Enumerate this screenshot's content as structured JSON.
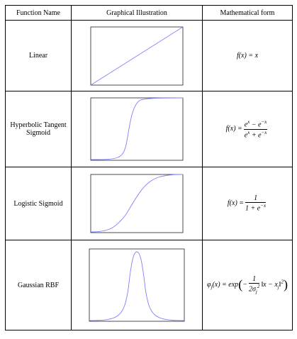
{
  "table": {
    "header": [
      "Function Name",
      "Graphical Illustration",
      "Mathematical form"
    ],
    "rows": [
      {
        "name": "Linear",
        "formula": {
          "lhs": "f(x) = x"
        }
      },
      {
        "name": "Hyperbolic Tangent Sigmoid",
        "formula": {
          "lhs": "f(x) =",
          "num": "e",
          "num_sup": "x",
          "num_mid": " − e",
          "num_sup2": "−x",
          "den": "e",
          "den_sup": "x",
          "den_mid": " + e",
          "den_sup2": "−x"
        }
      },
      {
        "name": "Logistic Sigmoid",
        "formula": {
          "lhs": "f(x) =",
          "num": "1",
          "den": "1 + e",
          "den_sup": "−x"
        }
      },
      {
        "name": "Gaussian RBF",
        "formula": {
          "lhs": "φ",
          "lhs_sub": "j",
          "lhs2": "(x) = exp",
          "open": "(",
          "minus": "−",
          "num": "1",
          "den": "2σ",
          "den_sub": "j",
          "den_sup": "2",
          "norm": "‖x − x",
          "norm_sub": "j",
          "norm_end": "‖",
          "norm_sup": "2",
          "close": ")"
        }
      }
    ]
  }
}
